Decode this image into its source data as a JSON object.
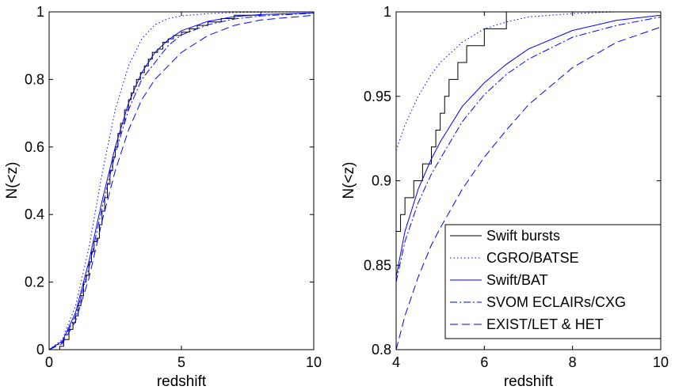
{
  "chart_data": [
    {
      "type": "line",
      "title": "",
      "xlabel": "redshift",
      "ylabel": "N(<z)",
      "xlim": [
        0,
        10
      ],
      "ylim": [
        0,
        1
      ],
      "xticks": [
        0,
        5,
        10
      ],
      "yticks": [
        0,
        0.2,
        0.4,
        0.6,
        0.8,
        1
      ],
      "xtick_labels": [
        "0",
        "5",
        "10"
      ],
      "ytick_labels": [
        "0",
        "0.2",
        "0.4",
        "0.6",
        "0.8",
        "1"
      ],
      "series": [
        {
          "name": "Swift bursts",
          "kind": "step",
          "color": "#000000",
          "dash": "",
          "x": [
            0,
            0.4,
            0.55,
            0.75,
            0.9,
            1.0,
            1.1,
            1.2,
            1.3,
            1.4,
            1.5,
            1.6,
            1.7,
            1.8,
            1.9,
            2.0,
            2.1,
            2.2,
            2.3,
            2.4,
            2.5,
            2.6,
            2.7,
            2.85,
            3.0,
            3.1,
            3.2,
            3.3,
            3.45,
            3.6,
            3.75,
            3.9,
            4.1,
            4.3,
            4.5,
            4.7,
            5.0,
            5.3,
            5.6,
            6.0,
            6.5,
            7.0,
            8.0,
            10
          ],
          "y": [
            0,
            0.01,
            0.03,
            0.06,
            0.08,
            0.1,
            0.13,
            0.16,
            0.2,
            0.22,
            0.26,
            0.29,
            0.32,
            0.33,
            0.37,
            0.41,
            0.45,
            0.49,
            0.53,
            0.57,
            0.6,
            0.64,
            0.67,
            0.71,
            0.74,
            0.76,
            0.78,
            0.8,
            0.82,
            0.84,
            0.86,
            0.88,
            0.89,
            0.91,
            0.92,
            0.93,
            0.94,
            0.95,
            0.96,
            0.97,
            0.98,
            0.99,
            1.0,
            1.0
          ]
        },
        {
          "name": "CGRO/BATSE",
          "kind": "line",
          "color": "#0000ff",
          "dash": "1.5,3",
          "x": [
            0,
            0.5,
            1.0,
            1.5,
            2.0,
            2.5,
            3.0,
            3.5,
            4.0,
            4.5,
            5.0,
            6.0,
            7.0,
            8.0,
            10
          ],
          "y": [
            0,
            0.03,
            0.13,
            0.3,
            0.52,
            0.71,
            0.84,
            0.92,
            0.962,
            0.98,
            0.988,
            0.995,
            0.998,
            0.999,
            1.0
          ]
        },
        {
          "name": "Swift/BAT",
          "kind": "line",
          "color": "#0000ff",
          "dash": "",
          "x": [
            0,
            0.5,
            1.0,
            1.5,
            2.0,
            2.5,
            3.0,
            3.5,
            4.0,
            4.5,
            5.0,
            6.0,
            7.0,
            8.0,
            10
          ],
          "y": [
            0,
            0.025,
            0.11,
            0.26,
            0.44,
            0.6,
            0.73,
            0.82,
            0.88,
            0.917,
            0.944,
            0.972,
            0.986,
            0.992,
            0.997
          ]
        },
        {
          "name": "SVOM ECLAIRs/CXG",
          "kind": "line",
          "color": "#0000ff",
          "dash": "9,3,2,3",
          "x": [
            0,
            0.5,
            1.0,
            1.5,
            2.0,
            2.5,
            3.0,
            3.5,
            4.0,
            4.5,
            5.0,
            6.0,
            7.0,
            8.0,
            10
          ],
          "y": [
            0,
            0.022,
            0.1,
            0.24,
            0.42,
            0.58,
            0.71,
            0.8,
            0.85,
            0.9,
            0.932,
            0.962,
            0.979,
            0.988,
            0.996
          ]
        },
        {
          "name": "EXIST/LET & HET",
          "kind": "line",
          "color": "#0000ff",
          "dash": "10,5",
          "x": [
            0,
            0.5,
            1.0,
            1.5,
            2.0,
            2.5,
            3.0,
            3.5,
            4.0,
            4.5,
            5.0,
            6.0,
            7.0,
            8.0,
            10
          ],
          "y": [
            0,
            0.018,
            0.085,
            0.21,
            0.38,
            0.53,
            0.65,
            0.74,
            0.8,
            0.84,
            0.88,
            0.93,
            0.96,
            0.976,
            0.99
          ]
        }
      ]
    },
    {
      "type": "line",
      "title": "",
      "xlabel": "redshift",
      "ylabel": "N(<z)",
      "xlim": [
        4,
        10
      ],
      "ylim": [
        0.8,
        1
      ],
      "xticks": [
        4,
        6,
        8,
        10
      ],
      "yticks": [
        0.8,
        0.85,
        0.9,
        0.95,
        1
      ],
      "xtick_labels": [
        "4",
        "6",
        "8",
        "10"
      ],
      "ytick_labels": [
        "0.8",
        "0.85",
        "0.9",
        "0.95",
        "1"
      ],
      "legend": {
        "location": "bottom-right",
        "entries": [
          "Swift bursts",
          "CGRO/BATSE",
          "Swift/BAT",
          "SVOM ECLAIRs/CXG",
          "EXIST/LET & HET"
        ]
      },
      "series": [
        {
          "name": "Swift bursts",
          "kind": "step",
          "color": "#000000",
          "dash": "",
          "x": [
            4.0,
            4.1,
            4.2,
            4.4,
            4.6,
            4.8,
            4.9,
            5.0,
            5.1,
            5.2,
            5.4,
            5.6,
            6.0,
            6.5,
            8.0,
            10
          ],
          "y": [
            0.87,
            0.88,
            0.89,
            0.9,
            0.91,
            0.92,
            0.93,
            0.94,
            0.95,
            0.96,
            0.97,
            0.98,
            0.99,
            1.0,
            1.0,
            1.0
          ]
        },
        {
          "name": "CGRO/BATSE",
          "kind": "line",
          "color": "#0000ff",
          "dash": "1.5,3",
          "x": [
            4.0,
            4.2,
            4.5,
            4.8,
            5.0,
            5.5,
            6.0,
            6.5,
            7.0,
            8.0,
            9.0,
            10
          ],
          "y": [
            0.918,
            0.933,
            0.95,
            0.963,
            0.97,
            0.982,
            0.99,
            0.994,
            0.997,
            0.999,
            1.0,
            1.0
          ]
        },
        {
          "name": "Swift/BAT",
          "kind": "line",
          "color": "#0000ff",
          "dash": "",
          "x": [
            4.0,
            4.2,
            4.5,
            4.8,
            5.0,
            5.5,
            6.0,
            6.5,
            7.0,
            8.0,
            9.0,
            10
          ],
          "y": [
            0.843,
            0.87,
            0.895,
            0.913,
            0.923,
            0.944,
            0.958,
            0.969,
            0.978,
            0.989,
            0.995,
            0.998
          ]
        },
        {
          "name": "SVOM ECLAIRs/CXG",
          "kind": "line",
          "color": "#0000ff",
          "dash": "9,3,2,3",
          "x": [
            4.0,
            4.2,
            4.5,
            4.8,
            5.0,
            5.5,
            6.0,
            6.5,
            7.0,
            8.0,
            9.0,
            10
          ],
          "y": [
            0.84,
            0.864,
            0.887,
            0.904,
            0.913,
            0.935,
            0.951,
            0.963,
            0.972,
            0.985,
            0.992,
            0.997
          ]
        },
        {
          "name": "EXIST/LET & HET",
          "kind": "line",
          "color": "#0000ff",
          "dash": "10,5",
          "x": [
            4.0,
            4.2,
            4.5,
            4.8,
            5.0,
            5.5,
            6.0,
            6.5,
            7.0,
            8.0,
            9.0,
            10
          ],
          "y": [
            0.8,
            0.82,
            0.843,
            0.862,
            0.872,
            0.895,
            0.914,
            0.93,
            0.945,
            0.967,
            0.982,
            0.991
          ]
        }
      ]
    }
  ]
}
